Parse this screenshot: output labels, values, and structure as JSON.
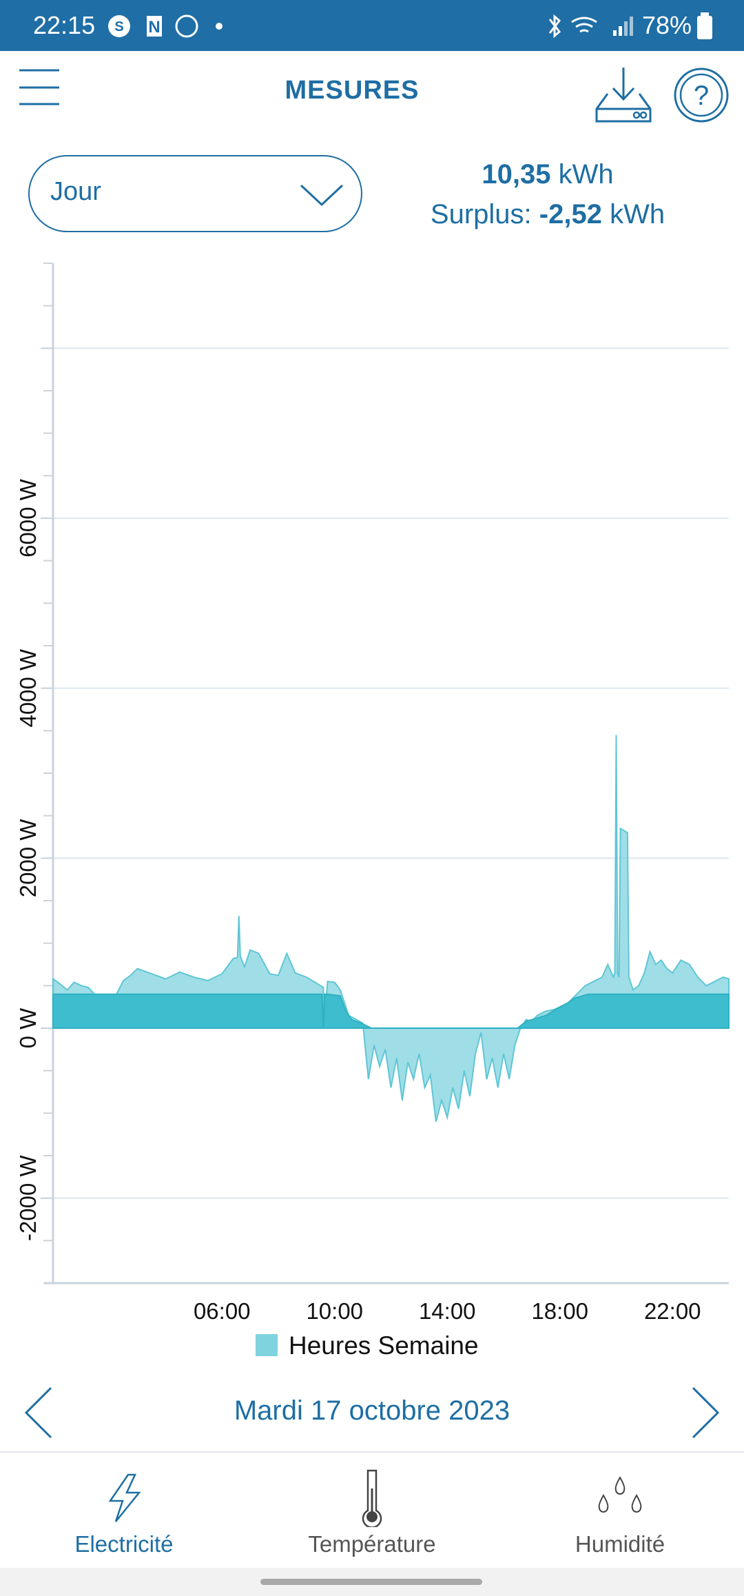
{
  "status_bar": {
    "time": "22:15",
    "battery": "78%"
  },
  "header": {
    "title": "MESURES"
  },
  "period_selector": {
    "selected": "Jour"
  },
  "summary": {
    "total_value": "10,35",
    "total_unit": "kWh",
    "surplus_label": "Surplus:",
    "surplus_value": "-2,52",
    "surplus_unit": "kWh"
  },
  "chart_data": {
    "type": "area",
    "series": [
      {
        "name": "Heures Semaine",
        "color": "#7fd3df",
        "x": [
          0,
          0.25,
          0.5,
          0.75,
          1,
          1.25,
          1.5,
          1.75,
          2,
          2.25,
          2.5,
          2.75,
          3,
          3.5,
          4,
          4.5,
          5,
          5.5,
          6,
          6.4,
          6.55,
          6.6,
          6.65,
          6.8,
          7,
          7.3,
          7.7,
          8,
          8.3,
          8.6,
          9,
          9.4,
          9.6,
          9.62,
          9.75,
          10,
          10.2,
          10.5,
          11,
          11.2,
          11.4,
          11.6,
          11.8,
          12,
          12.2,
          12.4,
          12.6,
          12.8,
          13,
          13.2,
          13.4,
          13.6,
          13.8,
          14,
          14.2,
          14.4,
          14.6,
          14.8,
          15,
          15.2,
          15.4,
          15.6,
          15.8,
          16,
          16.2,
          16.4,
          16.6,
          16.8,
          17,
          17.2,
          17.5,
          17.8,
          18,
          18.3,
          18.6,
          18.9,
          19.2,
          19.5,
          19.7,
          19.9,
          19.95,
          20,
          20.05,
          20.1,
          20.15,
          20.4,
          20.45,
          20.6,
          20.8,
          21,
          21.2,
          21.4,
          21.6,
          21.8,
          22,
          22.3,
          22.6,
          22.9,
          23.2,
          23.5,
          23.8,
          24
        ],
        "values": [
          580,
          520,
          450,
          540,
          500,
          480,
          390,
          380,
          390,
          400,
          560,
          620,
          700,
          640,
          580,
          660,
          600,
          560,
          640,
          820,
          830,
          1320,
          850,
          720,
          920,
          880,
          640,
          620,
          880,
          650,
          600,
          520,
          480,
          0,
          550,
          540,
          450,
          150,
          60,
          -600,
          -200,
          -450,
          -250,
          -700,
          -350,
          -850,
          -400,
          -600,
          -300,
          -700,
          -550,
          -1100,
          -850,
          -1050,
          -700,
          -950,
          -500,
          -800,
          -300,
          -50,
          -600,
          -350,
          -700,
          -300,
          -600,
          -200,
          0,
          100,
          80,
          150,
          200,
          220,
          250,
          300,
          400,
          500,
          550,
          600,
          750,
          600,
          650,
          3450,
          650,
          600,
          2350,
          2300,
          600,
          450,
          500,
          650,
          900,
          750,
          800,
          700,
          650,
          800,
          750,
          600,
          500,
          550,
          600,
          580
        ]
      },
      {
        "color": "#3dbdce",
        "x": [
          0,
          9.55,
          9.6,
          9.65,
          9.75,
          10.2,
          10.4,
          10.6,
          11,
          11.3,
          16.5,
          16.8,
          17,
          17.5,
          18,
          18.3,
          18.5,
          19,
          24
        ],
        "values": [
          400,
          400,
          0,
          400,
          400,
          380,
          200,
          100,
          50,
          0,
          0,
          80,
          100,
          150,
          250,
          300,
          350,
          400,
          400
        ]
      }
    ],
    "xlim": [
      0,
      24
    ],
    "xticks": [
      {
        "value": 6,
        "label": "06:00"
      },
      {
        "value": 10,
        "label": "10:00"
      },
      {
        "value": 14,
        "label": "14:00"
      },
      {
        "value": 18,
        "label": "18:00"
      },
      {
        "value": 22,
        "label": "22:00"
      }
    ],
    "ylim": [
      -3000,
      9000
    ],
    "yticks": [
      {
        "value": -2000,
        "label": "-2000 W"
      },
      {
        "value": 0,
        "label": "0 W"
      },
      {
        "value": 2000,
        "label": "2000 W"
      },
      {
        "value": 4000,
        "label": "4000 W"
      },
      {
        "value": 6000,
        "label": "6000 W"
      },
      {
        "value": 8000,
        "label": null
      }
    ],
    "minor_yticks": [
      -3000,
      -2500,
      -2000,
      -1500,
      -1000,
      -500,
      0,
      500,
      1000,
      1500,
      2000,
      2500,
      3000,
      3500,
      4000,
      4500,
      5000,
      5500,
      6000,
      6500,
      7000,
      7500,
      8000,
      8500,
      9000
    ],
    "grid": true,
    "legend": "bottom"
  },
  "date_nav": {
    "date": "Mardi 17 octobre 2023"
  },
  "bottom_nav": {
    "items": [
      {
        "label": "Electricité",
        "active": true
      },
      {
        "label": "Température",
        "active": false
      },
      {
        "label": "Humidité",
        "active": false
      }
    ]
  }
}
